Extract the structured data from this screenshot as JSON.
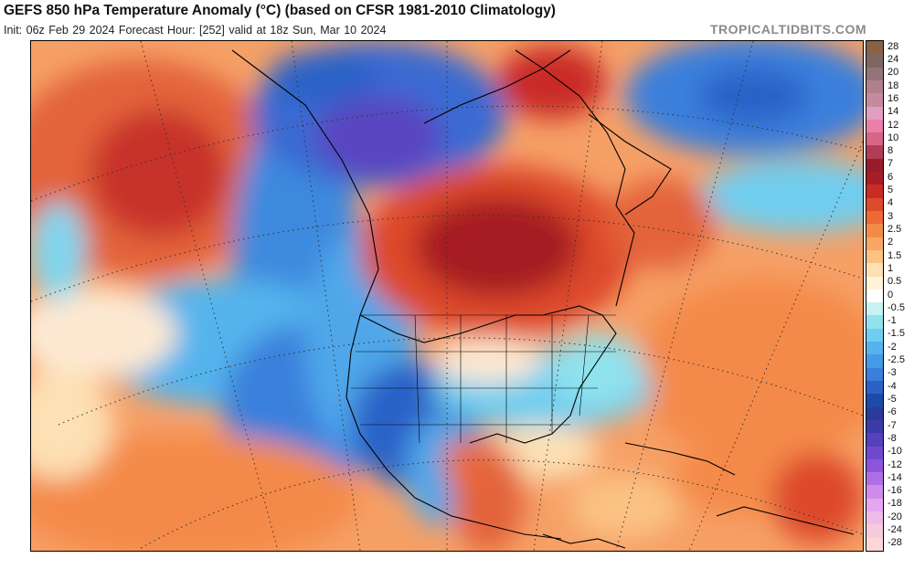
{
  "header": {
    "title": "GEFS 850 hPa Temperature Anomaly (°C) (based on CFSR 1981-2010 Climatology)",
    "subtitle": "Init: 06z Feb 29 2024   Forecast Hour: [252]   valid at 18z Sun, Mar 10 2024",
    "brand": "TROPICALTIDBITS.COM"
  },
  "colorbar": {
    "unit": "°C",
    "entries": [
      {
        "label": "28",
        "color": "#8a6147"
      },
      {
        "label": "24",
        "color": "#7e6660"
      },
      {
        "label": "20",
        "color": "#95737a"
      },
      {
        "label": "18",
        "color": "#b0818c"
      },
      {
        "label": "16",
        "color": "#c68aa0"
      },
      {
        "label": "14",
        "color": "#e09ec4"
      },
      {
        "label": "12",
        "color": "#ea7fa9"
      },
      {
        "label": "10",
        "color": "#d96587"
      },
      {
        "label": "8",
        "color": "#b23e55"
      },
      {
        "label": "7",
        "color": "#951d2c"
      },
      {
        "label": "6",
        "color": "#a61e23"
      },
      {
        "label": "5",
        "color": "#c92b25"
      },
      {
        "label": "4",
        "color": "#dd4a2c"
      },
      {
        "label": "3",
        "color": "#ed6a35"
      },
      {
        "label": "2.5",
        "color": "#f48a48"
      },
      {
        "label": "2",
        "color": "#f8a764"
      },
      {
        "label": "1.5",
        "color": "#fbc283"
      },
      {
        "label": "1",
        "color": "#fde0b4"
      },
      {
        "label": "0.5",
        "color": "#fff3dc"
      },
      {
        "label": "0",
        "color": "#ffffff"
      },
      {
        "label": "-0.5",
        "color": "#c9f2f2"
      },
      {
        "label": "-1",
        "color": "#90e2ee"
      },
      {
        "label": "-1.5",
        "color": "#6fcdef"
      },
      {
        "label": "-2",
        "color": "#55b4ec"
      },
      {
        "label": "-2.5",
        "color": "#4599e6"
      },
      {
        "label": "-3",
        "color": "#3a7fdc"
      },
      {
        "label": "-4",
        "color": "#2c62c7"
      },
      {
        "label": "-5",
        "color": "#1d49a8"
      },
      {
        "label": "-6",
        "color": "#2a3a99"
      },
      {
        "label": "-7",
        "color": "#3c3aa8"
      },
      {
        "label": "-8",
        "color": "#5540be"
      },
      {
        "label": "-10",
        "color": "#7048d0"
      },
      {
        "label": "-12",
        "color": "#8c55dc"
      },
      {
        "label": "-14",
        "color": "#b06ee6"
      },
      {
        "label": "-16",
        "color": "#cf8cec"
      },
      {
        "label": "-18",
        "color": "#e4a6ee"
      },
      {
        "label": "-20",
        "color": "#efbbe8"
      },
      {
        "label": "-24",
        "color": "#f5ccdc"
      },
      {
        "label": "-28",
        "color": "#fbd8d6"
      }
    ]
  }
}
